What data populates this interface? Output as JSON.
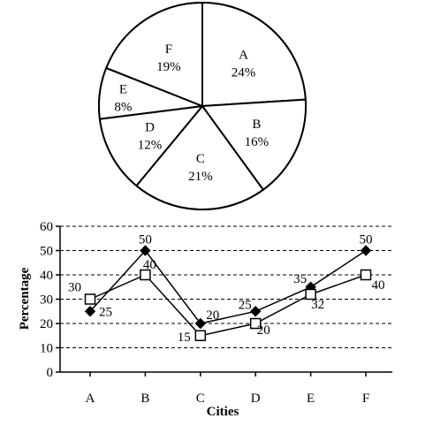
{
  "chart_data": [
    {
      "type": "pie",
      "categories": [
        "A",
        "B",
        "C",
        "D",
        "E",
        "F"
      ],
      "values": [
        24,
        16,
        21,
        12,
        8,
        19
      ],
      "value_labels": [
        "24%",
        "16%",
        "21%",
        "12%",
        "8%",
        "19%"
      ],
      "colors": {
        "fill": "#ffffff",
        "stroke": "#000000"
      }
    },
    {
      "type": "line",
      "categories": [
        "A",
        "B",
        "C",
        "D",
        "E",
        "F"
      ],
      "series": [
        {
          "marker": "filled-diamond",
          "values": [
            25,
            50,
            20,
            25,
            35,
            50
          ]
        },
        {
          "marker": "open-square",
          "values": [
            30,
            40,
            15,
            20,
            32,
            40
          ]
        }
      ],
      "data_labels": [
        [
          "25",
          "50",
          "20",
          "25",
          "35",
          "50"
        ],
        [
          "30",
          "40",
          "15",
          "20",
          "32",
          "40"
        ]
      ],
      "xlabel": "Cities",
      "ylabel": "Percentage",
      "ylim": [
        0,
        60
      ],
      "yticks": [
        "0",
        "10",
        "20",
        "30",
        "40",
        "50",
        "60"
      ],
      "grid": "horizontal-dashed",
      "colors": {
        "line": "#000000"
      }
    }
  ]
}
